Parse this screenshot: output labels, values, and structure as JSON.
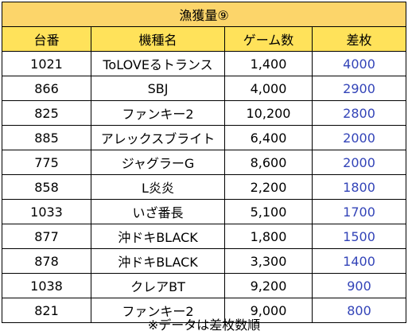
{
  "table": {
    "title": "漁獲量⑨",
    "headers": [
      "台番",
      "機種名",
      "ゲーム数",
      "差枚"
    ],
    "rows": [
      {
        "machine_no": "1021",
        "model": "ToLOVEるトランス",
        "games": "1,400",
        "diff": "4000"
      },
      {
        "machine_no": "866",
        "model": "SBJ",
        "games": "4,000",
        "diff": "2900"
      },
      {
        "machine_no": "825",
        "model": "ファンキー2",
        "games": "10,200",
        "diff": "2800"
      },
      {
        "machine_no": "885",
        "model": "アレックスブライト",
        "games": "6,400",
        "diff": "2000"
      },
      {
        "machine_no": "775",
        "model": "ジャグラーG",
        "games": "8,600",
        "diff": "2000"
      },
      {
        "machine_no": "858",
        "model": "L炎炎",
        "games": "2,200",
        "diff": "1800"
      },
      {
        "machine_no": "1033",
        "model": "いざ番長",
        "games": "5,100",
        "diff": "1700"
      },
      {
        "machine_no": "877",
        "model": "沖ドキBLACK",
        "games": "1,800",
        "diff": "1500"
      },
      {
        "machine_no": "878",
        "model": "沖ドキBLACK",
        "games": "3,300",
        "diff": "1400"
      },
      {
        "machine_no": "1038",
        "model": "クレアBT",
        "games": "9,200",
        "diff": "900"
      },
      {
        "machine_no": "821",
        "model": "ファンキー2",
        "games": "9,000",
        "diff": "800"
      }
    ]
  },
  "footer": {
    "note": "※データは差枚数順"
  },
  "colors": {
    "title_bg": "#fcd56a",
    "header_bg": "#ffe25a",
    "diff_text": "#3344b8",
    "border": "#000000"
  }
}
